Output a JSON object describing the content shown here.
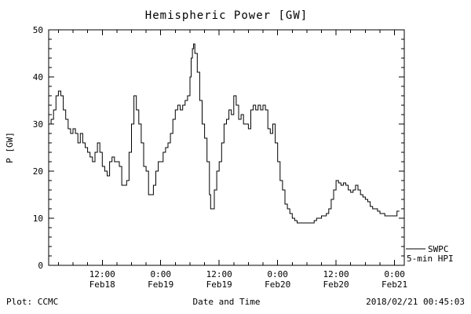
{
  "title": "Hemispheric Power [GW]",
  "footer": {
    "left": "Plot: CCMC",
    "xlabel": "Date and Time",
    "timestamp": "2018/02/21 00:45:03"
  },
  "legend": {
    "series": "SWPC",
    "series2": "5-min HPI"
  },
  "chart_data": {
    "type": "line",
    "title": "Hemispheric Power [GW]",
    "xlabel": "Date and Time",
    "ylabel": "P [GW]",
    "ylim": [
      0,
      50
    ],
    "yticks": [
      0,
      10,
      20,
      30,
      40,
      50
    ],
    "xlim": [
      1,
      74
    ],
    "x_unit": "hours since 2018-02-18 00:00",
    "xticks": [
      {
        "t": 12,
        "time": "12:00",
        "date": "Feb18"
      },
      {
        "t": 24,
        "time": "0:00",
        "date": "Feb19"
      },
      {
        "t": 36,
        "time": "12:00",
        "date": "Feb19"
      },
      {
        "t": 48,
        "time": "0:00",
        "date": "Feb20"
      },
      {
        "t": 60,
        "time": "12:00",
        "date": "Feb20"
      },
      {
        "t": 72,
        "time": "0:00",
        "date": "Feb21"
      }
    ],
    "grid": false,
    "legend_position": "outside-right-bottom",
    "line_color": "#000000",
    "series_name": "SWPC 5-min HPI",
    "points": [
      [
        1,
        30
      ],
      [
        1.5,
        31
      ],
      [
        2,
        33
      ],
      [
        2.5,
        36
      ],
      [
        3,
        37
      ],
      [
        3.5,
        36
      ],
      [
        4,
        33
      ],
      [
        4.5,
        31
      ],
      [
        5,
        29
      ],
      [
        5.5,
        28
      ],
      [
        6,
        29
      ],
      [
        6.5,
        28
      ],
      [
        7,
        26
      ],
      [
        7.5,
        28
      ],
      [
        8,
        26
      ],
      [
        8.5,
        25
      ],
      [
        9,
        24
      ],
      [
        9.5,
        23
      ],
      [
        10,
        22
      ],
      [
        10.5,
        24
      ],
      [
        11,
        26
      ],
      [
        11.5,
        24
      ],
      [
        12,
        21
      ],
      [
        12.5,
        20
      ],
      [
        13,
        19
      ],
      [
        13.5,
        22
      ],
      [
        14,
        23
      ],
      [
        14.5,
        22
      ],
      [
        15,
        22
      ],
      [
        15.5,
        21
      ],
      [
        16,
        17
      ],
      [
        16.5,
        17
      ],
      [
        17,
        18
      ],
      [
        17.5,
        24
      ],
      [
        18,
        30
      ],
      [
        18.5,
        36
      ],
      [
        19,
        33
      ],
      [
        19.5,
        30
      ],
      [
        20,
        26
      ],
      [
        20.5,
        21
      ],
      [
        21,
        20
      ],
      [
        21.5,
        15
      ],
      [
        22,
        15
      ],
      [
        22.5,
        17
      ],
      [
        23,
        20
      ],
      [
        23.5,
        22
      ],
      [
        24,
        22
      ],
      [
        24.5,
        24
      ],
      [
        25,
        25
      ],
      [
        25.5,
        26
      ],
      [
        26,
        28
      ],
      [
        26.5,
        31
      ],
      [
        27,
        33
      ],
      [
        27.5,
        34
      ],
      [
        28,
        33
      ],
      [
        28.5,
        34
      ],
      [
        29,
        35
      ],
      [
        29.5,
        36
      ],
      [
        30,
        40
      ],
      [
        30.25,
        44
      ],
      [
        30.5,
        46
      ],
      [
        30.75,
        47
      ],
      [
        31,
        45
      ],
      [
        31.5,
        41
      ],
      [
        32,
        35
      ],
      [
        32.5,
        30
      ],
      [
        33,
        27
      ],
      [
        33.5,
        22
      ],
      [
        34,
        15
      ],
      [
        34.25,
        12
      ],
      [
        34.5,
        12
      ],
      [
        35,
        16
      ],
      [
        35.5,
        20
      ],
      [
        36,
        22
      ],
      [
        36.5,
        26
      ],
      [
        37,
        30
      ],
      [
        37.5,
        31
      ],
      [
        38,
        33
      ],
      [
        38.5,
        32
      ],
      [
        39,
        36
      ],
      [
        39.5,
        34
      ],
      [
        40,
        31
      ],
      [
        40.5,
        32
      ],
      [
        41,
        30
      ],
      [
        41.5,
        30
      ],
      [
        42,
        29
      ],
      [
        42.5,
        33
      ],
      [
        43,
        34
      ],
      [
        43.5,
        33
      ],
      [
        44,
        34
      ],
      [
        44.5,
        33
      ],
      [
        45,
        34
      ],
      [
        45.5,
        33
      ],
      [
        46,
        29
      ],
      [
        46.5,
        28
      ],
      [
        47,
        30
      ],
      [
        47.5,
        26
      ],
      [
        48,
        22
      ],
      [
        48.5,
        18
      ],
      [
        49,
        16
      ],
      [
        49.5,
        13
      ],
      [
        50,
        12
      ],
      [
        50.5,
        11
      ],
      [
        51,
        10
      ],
      [
        51.5,
        9.5
      ],
      [
        52,
        9
      ],
      [
        53,
        9
      ],
      [
        54,
        9
      ],
      [
        55,
        9
      ],
      [
        55.5,
        9.5
      ],
      [
        56,
        10
      ],
      [
        56.5,
        10
      ],
      [
        57,
        10.5
      ],
      [
        58,
        11
      ],
      [
        58.5,
        12
      ],
      [
        59,
        14
      ],
      [
        59.5,
        16
      ],
      [
        60,
        18
      ],
      [
        60.5,
        17.5
      ],
      [
        61,
        17
      ],
      [
        61.5,
        17.5
      ],
      [
        62,
        17
      ],
      [
        62.5,
        16
      ],
      [
        63,
        15.5
      ],
      [
        63.5,
        16
      ],
      [
        64,
        17
      ],
      [
        64.5,
        16
      ],
      [
        65,
        15
      ],
      [
        65.5,
        14.5
      ],
      [
        66,
        14
      ],
      [
        66.5,
        13.5
      ],
      [
        67,
        12.5
      ],
      [
        67.5,
        12
      ],
      [
        68,
        12
      ],
      [
        68.5,
        11.5
      ],
      [
        69,
        11
      ],
      [
        70,
        10.5
      ],
      [
        71,
        10.5
      ],
      [
        72,
        10.5
      ],
      [
        72.5,
        11.5
      ],
      [
        73,
        11.5
      ]
    ]
  }
}
